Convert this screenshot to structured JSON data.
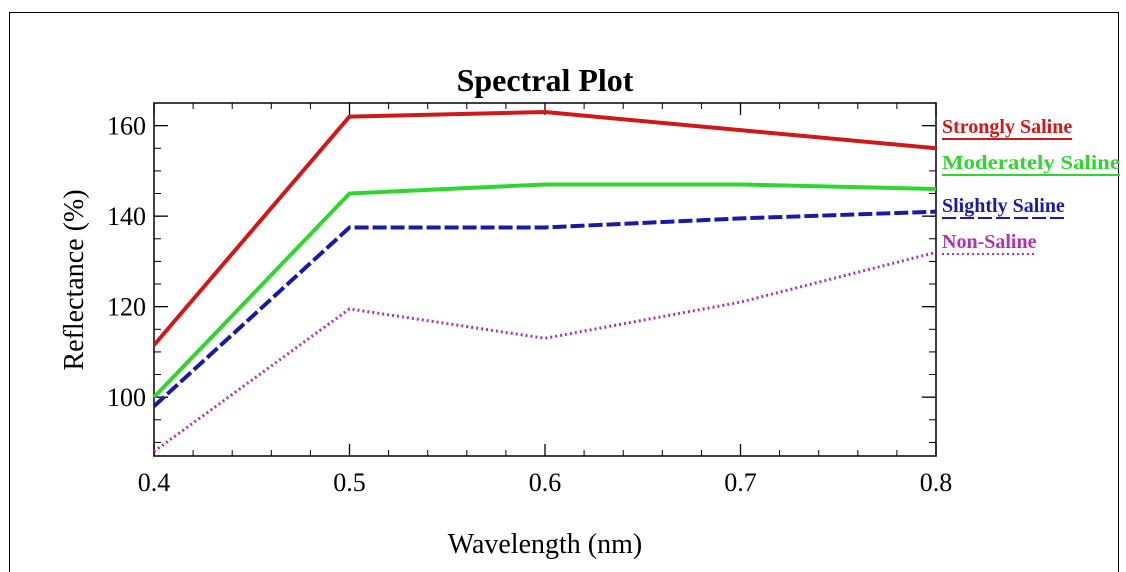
{
  "chart_data": {
    "type": "line",
    "title": "Spectral Plot",
    "xlabel": "Wavelength (nm)",
    "ylabel": "Reflectance (%)",
    "xlim": [
      0.4,
      0.8
    ],
    "ylim": [
      87,
      165
    ],
    "x": [
      0.4,
      0.5,
      0.6,
      0.7,
      0.8
    ],
    "xticks": [
      "0.4",
      "0.5",
      "0.6",
      "0.7",
      "0.8"
    ],
    "yticks": [
      100,
      120,
      140,
      160
    ],
    "legend_position": "right, outside plot",
    "grid": false,
    "series": [
      {
        "name": "Strongly Saline",
        "values": [
          111.5,
          162,
          163,
          159,
          155
        ],
        "color": "#d01818",
        "style": "solid"
      },
      {
        "name": "Moderately Saline",
        "values": [
          100,
          145,
          147,
          147,
          146
        ],
        "color": "#2ed62e",
        "style": "solid"
      },
      {
        "name": "Slightly Saline",
        "values": [
          98,
          137.5,
          137.5,
          139.5,
          141
        ],
        "color": "#1a1aa6",
        "style": "dashed"
      },
      {
        "name": "Non-Saline",
        "values": [
          88,
          119.5,
          113,
          121,
          132
        ],
        "color": "#b032b0",
        "style": "dotted"
      }
    ]
  }
}
